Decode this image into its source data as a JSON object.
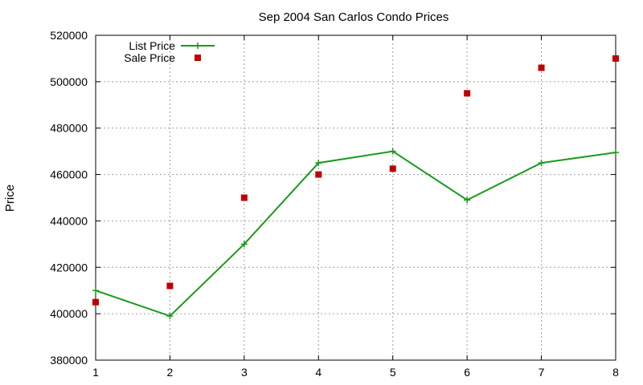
{
  "chart_data": {
    "type": "line",
    "title": "Sep 2004 San Carlos Condo Prices",
    "xlabel": "",
    "ylabel": "Price",
    "x": [
      1,
      2,
      3,
      4,
      5,
      6,
      7,
      8
    ],
    "xlim": [
      1,
      8
    ],
    "ylim": [
      380000,
      520000
    ],
    "xticks": [
      "1",
      "2",
      "3",
      "4",
      "5",
      "6",
      "7",
      "8"
    ],
    "yticks": [
      "380000",
      "400000",
      "420000",
      "440000",
      "460000",
      "480000",
      "500000",
      "520000"
    ],
    "grid": true,
    "legend_position": "top-left",
    "series": [
      {
        "name": "List Price",
        "style": "lines+crosses",
        "color": "#1a9a1a",
        "values": [
          410000,
          399000,
          430000,
          465000,
          470000,
          449000,
          465000,
          469500
        ]
      },
      {
        "name": "Sale Price",
        "style": "squares",
        "color": "#c00000",
        "values": [
          405000,
          412000,
          450000,
          460000,
          462500,
          495000,
          506000,
          510000
        ]
      }
    ]
  }
}
